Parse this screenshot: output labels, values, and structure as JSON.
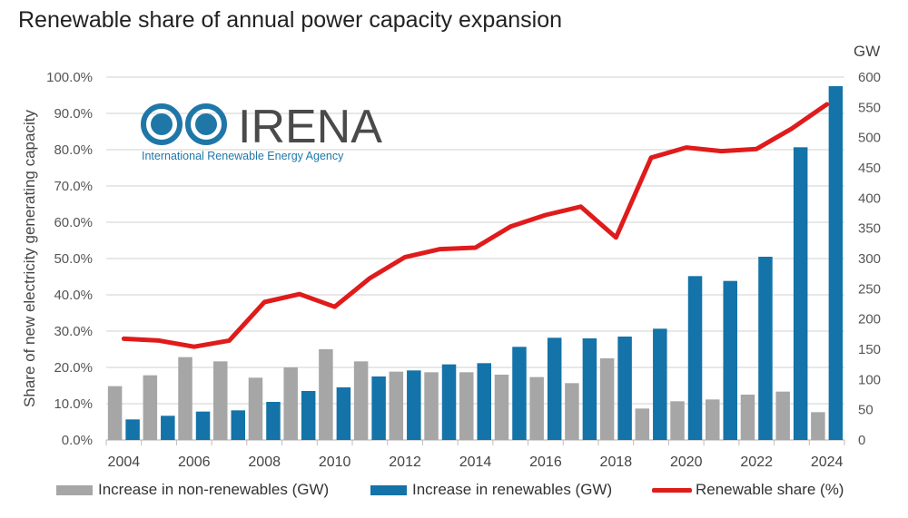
{
  "chart_data": {
    "type": "bar+line",
    "title": "Renewable share of annual power capacity expansion",
    "ylabel_left": "Share of new electricity generating capacity",
    "ylabel_right": "GW",
    "left_ticks": [
      "0.0%",
      "10.0%",
      "20.0%",
      "30.0%",
      "40.0%",
      "50.0%",
      "60.0%",
      "70.0%",
      "80.0%",
      "90.0%",
      "100.0%"
    ],
    "right_ticks": [
      "0",
      "50",
      "100",
      "150",
      "200",
      "250",
      "300",
      "350",
      "400",
      "450",
      "500",
      "550",
      "600"
    ],
    "ylim_left": [
      0,
      100
    ],
    "ylim_right": [
      0,
      600
    ],
    "x_labels": [
      "2004",
      "2006",
      "2008",
      "2010",
      "2012",
      "2014",
      "2016",
      "2018",
      "2020",
      "2022",
      "2024"
    ],
    "categories": [
      "2004",
      "2005",
      "2006",
      "2007",
      "2008",
      "2009",
      "2010",
      "2011",
      "2012",
      "2013",
      "2014",
      "2015",
      "2016",
      "2017",
      "2018",
      "2019",
      "2020",
      "2021",
      "2022",
      "2023",
      "2024"
    ],
    "series": [
      {
        "name": "Increase in non-renewables (GW)",
        "color": "#a6a6a6",
        "axis": "right",
        "kind": "bar",
        "values": [
          89,
          107,
          137,
          130,
          103,
          120,
          150,
          130,
          113,
          112,
          112,
          108,
          104,
          94,
          135,
          52,
          64,
          67,
          75,
          80,
          46
        ]
      },
      {
        "name": "Increase in renewables (GW)",
        "color": "#1473a8",
        "axis": "right",
        "kind": "bar",
        "values": [
          34,
          40,
          47,
          49,
          63,
          81,
          87,
          105,
          115,
          125,
          127,
          154,
          169,
          168,
          171,
          184,
          271,
          263,
          303,
          484,
          585
        ]
      },
      {
        "name": "Renewable share (%)",
        "color": "#e01b1b",
        "axis": "left",
        "kind": "line",
        "values": [
          27.9,
          27.4,
          25.7,
          27.4,
          38.0,
          40.2,
          36.7,
          44.6,
          50.4,
          52.6,
          53.0,
          58.8,
          62.0,
          64.3,
          55.8,
          77.8,
          80.6,
          79.6,
          80.2,
          85.8,
          92.5
        ]
      }
    ],
    "legend_position": "bottom"
  },
  "logo": {
    "name": "IRENA",
    "subtitle": "International Renewable Energy Agency"
  }
}
